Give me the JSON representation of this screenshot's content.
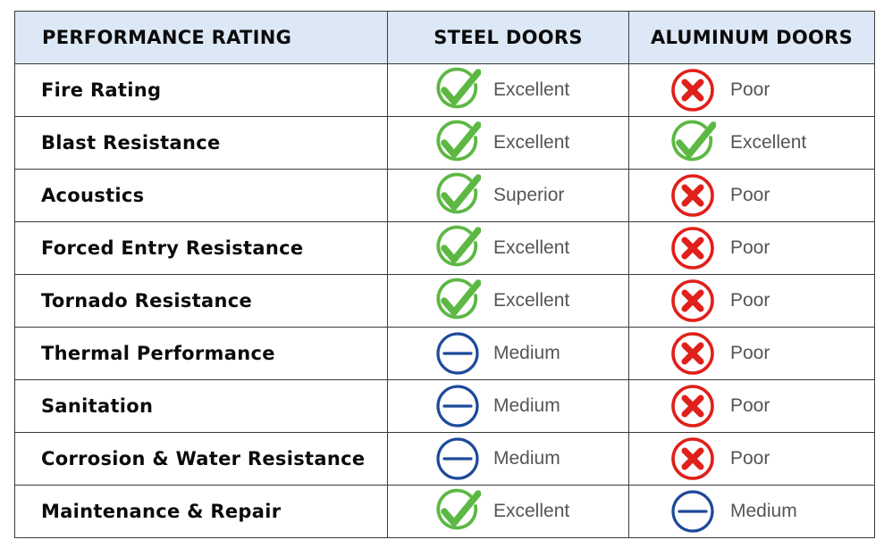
{
  "headers": {
    "performance": "PERFORMANCE RATING",
    "steel": "STEEL DOORS",
    "aluminum": "ALUMINUM DOORS"
  },
  "colors": {
    "header_bg": "#dde8f7",
    "check": "#5cb843",
    "cross": "#e0201b",
    "dash": "#1d4a9a"
  },
  "rows": [
    {
      "label": "Fire Rating",
      "steel": {
        "icon": "check-icon",
        "text": "Excellent"
      },
      "aluminum": {
        "icon": "x-icon",
        "text": "Poor"
      }
    },
    {
      "label": "Blast Resistance",
      "steel": {
        "icon": "check-icon",
        "text": "Excellent"
      },
      "aluminum": {
        "icon": "check-icon",
        "text": "Excellent"
      }
    },
    {
      "label": "Acoustics",
      "steel": {
        "icon": "check-icon",
        "text": "Superior"
      },
      "aluminum": {
        "icon": "x-icon",
        "text": "Poor"
      }
    },
    {
      "label": "Forced Entry Resistance",
      "steel": {
        "icon": "check-icon",
        "text": "Excellent"
      },
      "aluminum": {
        "icon": "x-icon",
        "text": "Poor"
      }
    },
    {
      "label": "Tornado Resistance",
      "steel": {
        "icon": "check-icon",
        "text": "Excellent"
      },
      "aluminum": {
        "icon": "x-icon",
        "text": "Poor"
      }
    },
    {
      "label": "Thermal Performance",
      "steel": {
        "icon": "dash-icon",
        "text": "Medium"
      },
      "aluminum": {
        "icon": "x-icon",
        "text": "Poor"
      }
    },
    {
      "label": "Sanitation",
      "steel": {
        "icon": "dash-icon",
        "text": "Medium"
      },
      "aluminum": {
        "icon": "x-icon",
        "text": "Poor"
      }
    },
    {
      "label": "Corrosion & Water Resistance",
      "steel": {
        "icon": "dash-icon",
        "text": "Medium"
      },
      "aluminum": {
        "icon": "x-icon",
        "text": "Poor"
      }
    },
    {
      "label": "Maintenance & Repair",
      "steel": {
        "icon": "check-icon",
        "text": "Excellent"
      },
      "aluminum": {
        "icon": "dash-icon",
        "text": "Medium"
      }
    }
  ]
}
